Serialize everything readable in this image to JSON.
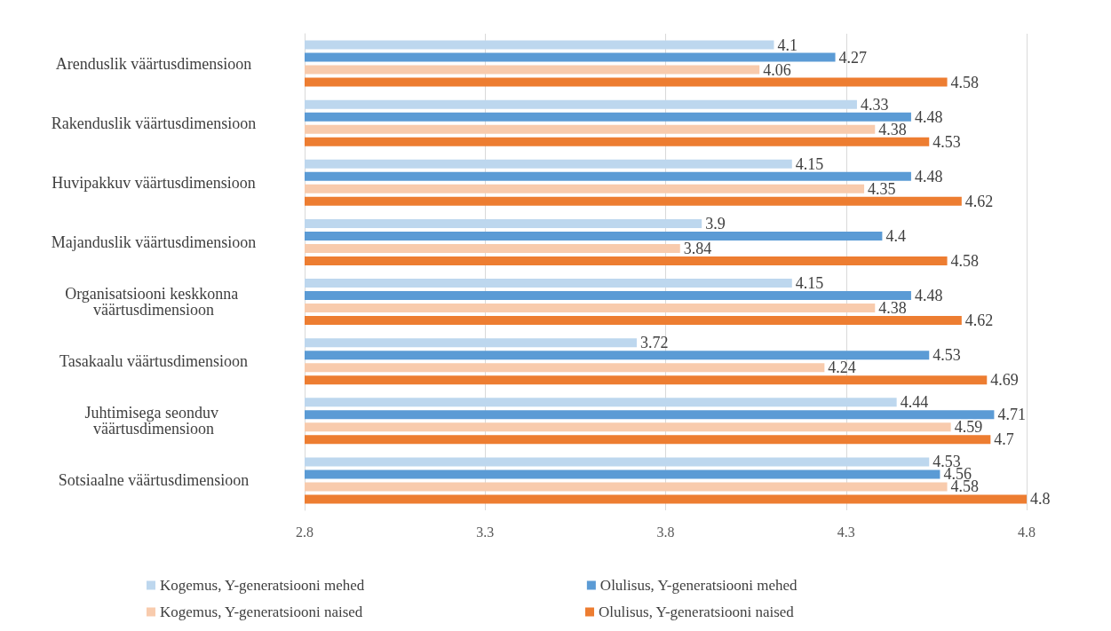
{
  "chart_data": {
    "type": "bar",
    "orientation": "horizontal",
    "categories": [
      "Arenduslik väärtusdimensioon",
      "Rakenduslik väärtusdimensioon",
      "Huvipakkuv väärtusdimensioon",
      "Majanduslik väärtusdimensioon",
      "Organisatsiooni keskkonna väärtusdimensioon",
      "Tasakaalu väärtusdimensioon",
      "Juhtimisega seonduv väärtusdimensioon",
      "Sotsiaalne väärtusdimensioon"
    ],
    "series": [
      {
        "name": "Kogemus, Y-generatsiooni mehed",
        "color": "#bdd7ee",
        "values": [
          4.1,
          4.33,
          4.15,
          3.9,
          4.15,
          3.72,
          4.44,
          4.53
        ]
      },
      {
        "name": "Olulisus, Y-generatsiooni mehed",
        "color": "#5b9bd5",
        "values": [
          4.27,
          4.48,
          4.48,
          4.4,
          4.48,
          4.53,
          4.71,
          4.56
        ]
      },
      {
        "name": "Kogemus, Y-generatsiooni naised",
        "color": "#f8cbad",
        "values": [
          4.06,
          4.38,
          4.35,
          3.84,
          4.38,
          4.24,
          4.59,
          4.58
        ]
      },
      {
        "name": "Olulisus, Y-generatsiooni naised",
        "color": "#ed7d31",
        "values": [
          4.58,
          4.53,
          4.62,
          4.58,
          4.62,
          4.69,
          4.7,
          4.8
        ]
      }
    ],
    "xlim": [
      2.8,
      4.8
    ],
    "xticks": [
      2.8,
      3.3,
      3.8,
      4.3,
      4.8
    ],
    "grid": "x",
    "legend": "bottom",
    "data_labels": true
  }
}
